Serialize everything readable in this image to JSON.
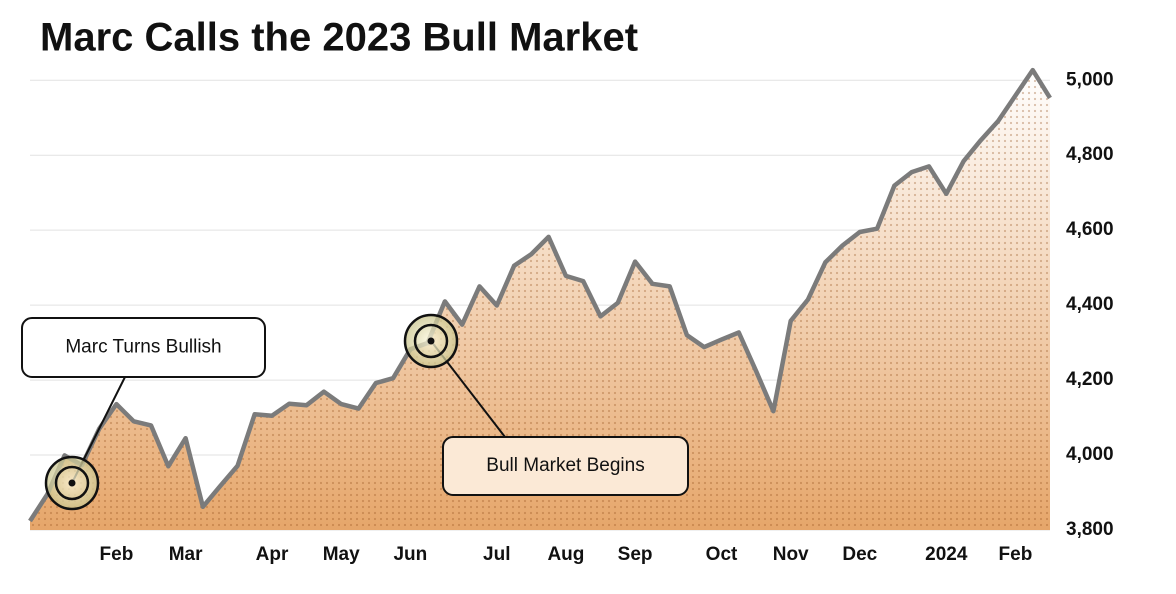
{
  "chart_data": {
    "type": "line",
    "title": "Marc Calls the 2023 Bull Market",
    "categories": [
      null,
      null,
      null,
      null,
      null,
      "Feb",
      null,
      null,
      null,
      "Mar",
      null,
      null,
      null,
      null,
      "Apr",
      null,
      null,
      null,
      "May",
      null,
      null,
      null,
      "Jun",
      null,
      null,
      null,
      null,
      "Jul",
      null,
      null,
      null,
      "Aug",
      null,
      null,
      null,
      "Sep",
      null,
      null,
      null,
      null,
      "Oct",
      null,
      null,
      null,
      "Nov",
      null,
      null,
      null,
      "Dec",
      null,
      null,
      null,
      null,
      "2024",
      null,
      null,
      null,
      "Feb",
      null,
      null
    ],
    "series": [
      {
        "color": "#7b7b7b",
        "values": [
          3824,
          3895,
          3999,
          3973,
          4070,
          4136,
          4090,
          4079,
          3970,
          4045,
          3862,
          3917,
          3971,
          4109,
          4105,
          4137,
          4133,
          4169,
          4136,
          4124,
          4192,
          4205,
          4282,
          4299,
          4410,
          4348,
          4450,
          4399,
          4505,
          4536,
          4582,
          4478,
          4464,
          4370,
          4406,
          4516,
          4457,
          4450,
          4320,
          4288,
          4308,
          4327,
          4224,
          4117,
          4358,
          4415,
          4514,
          4559,
          4595,
          4604,
          4719,
          4755,
          4770,
          4697,
          4784,
          4840,
          4891,
          4959,
          5027,
          4953
        ]
      }
    ],
    "ylim": [
      3800,
      5030
    ],
    "yticks": [
      {
        "value": 3800,
        "label": "3,800"
      },
      {
        "value": 4000,
        "label": "4,000"
      },
      {
        "value": 4200,
        "label": "4,200"
      },
      {
        "value": 4400,
        "label": "4,400"
      },
      {
        "value": 4600,
        "label": "4,600"
      },
      {
        "value": 4800,
        "label": "4,800"
      },
      {
        "value": 5000,
        "label": "5,000"
      }
    ],
    "grid": true,
    "annotations": [
      {
        "text": "Marc Turns Bullish"
      },
      {
        "text": "Bull Market Begins"
      }
    ]
  }
}
